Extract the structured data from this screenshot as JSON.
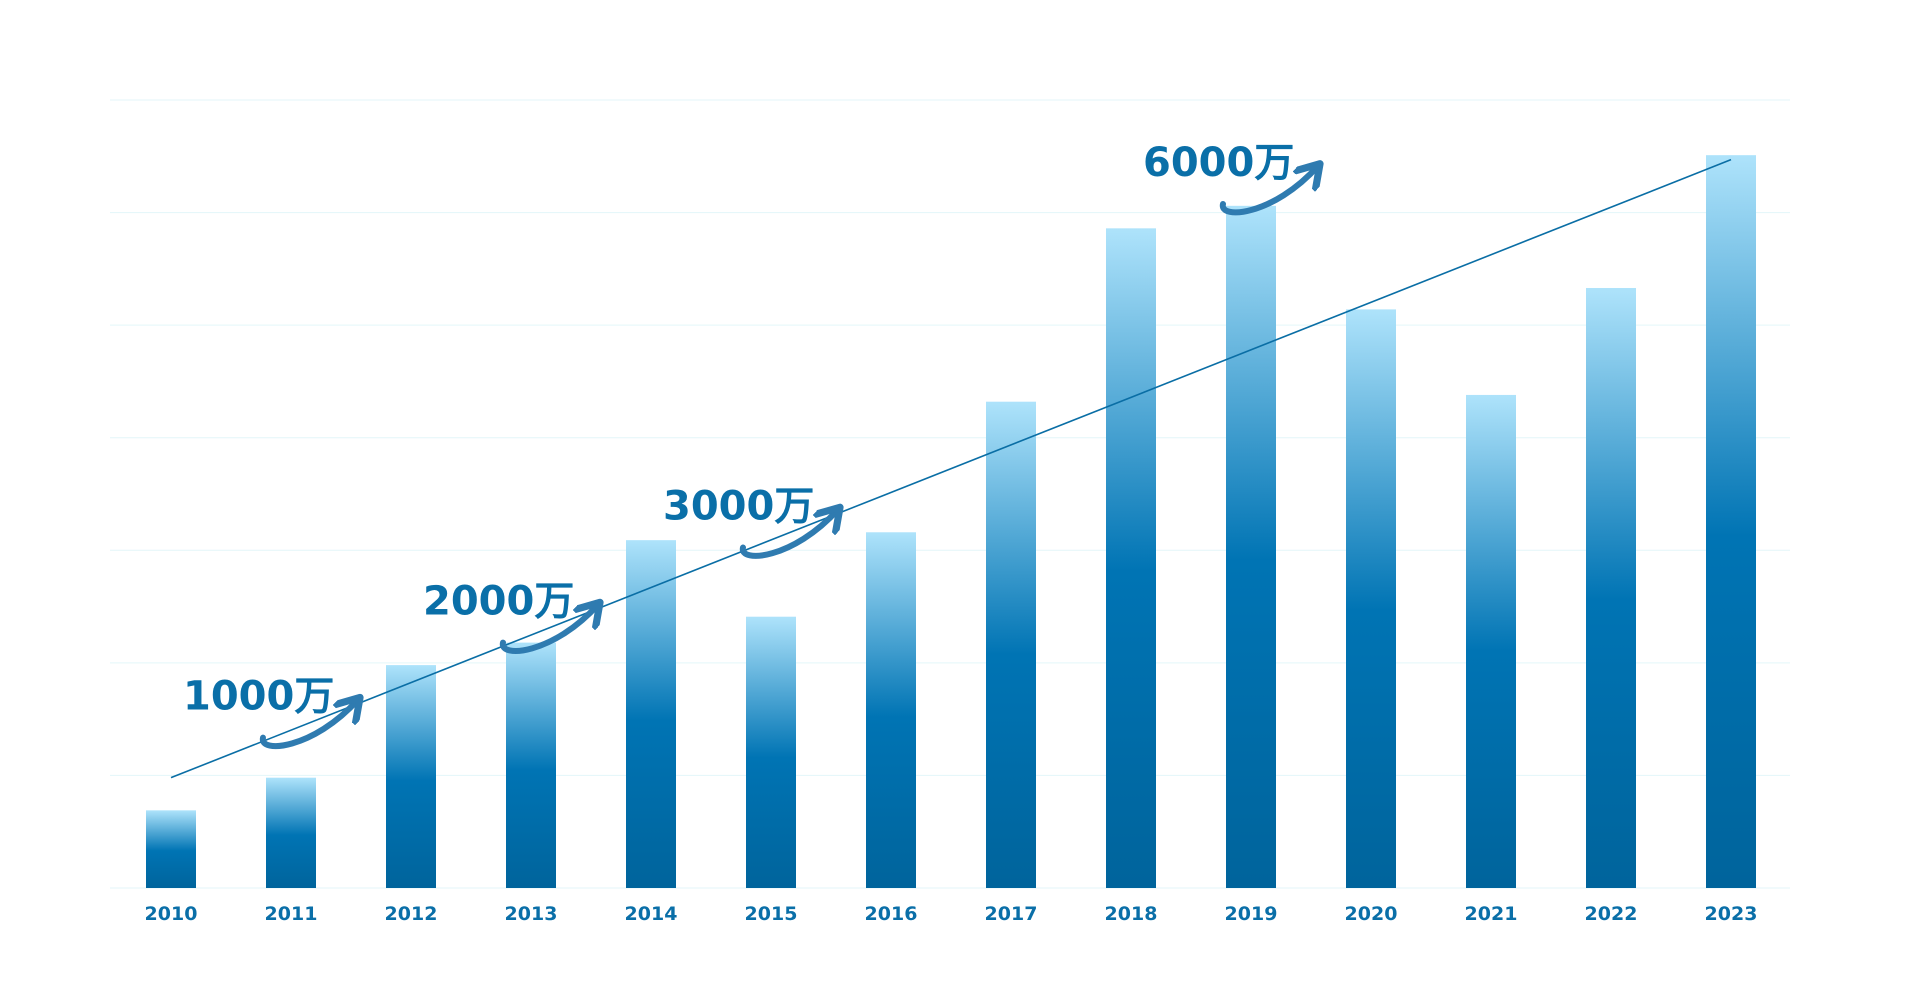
{
  "colors": {
    "background": "#ffffff",
    "bar_top": "#aee3fb",
    "bar_mid": "#0074b4",
    "bar_bottom": "#00649c",
    "tick_text": "#0a6fa8",
    "annotation_text": "#0a6fa8",
    "arrow": "#2f7bb0",
    "trend_line": "#0a6ea5",
    "grid": "#e3f6f9"
  },
  "annotations": [
    {
      "text": "1000万",
      "at_category": "2010"
    },
    {
      "text": "2000万",
      "at_category": "2012"
    },
    {
      "text": "3000万",
      "at_category": "2014"
    },
    {
      "text": "6000万",
      "at_category": "2018"
    }
  ],
  "chart_data": {
    "type": "bar",
    "title": "",
    "xlabel": "",
    "ylabel": "",
    "categories": [
      "2010",
      "2011",
      "2012",
      "2013",
      "2014",
      "2015",
      "2016",
      "2017",
      "2018",
      "2019",
      "2020",
      "2021",
      "2022",
      "2023"
    ],
    "values": [
      690,
      980,
      1980,
      2180,
      3090,
      2410,
      3160,
      4320,
      5860,
      6060,
      5140,
      4380,
      5330,
      6510
    ],
    "ylim": [
      0,
      7000
    ],
    "grid": true,
    "y_ticks_shown": false,
    "legend": "none",
    "trendline": {
      "start_category": "2010",
      "end_category": "2023",
      "start_value": 980,
      "end_value": 6470
    }
  }
}
